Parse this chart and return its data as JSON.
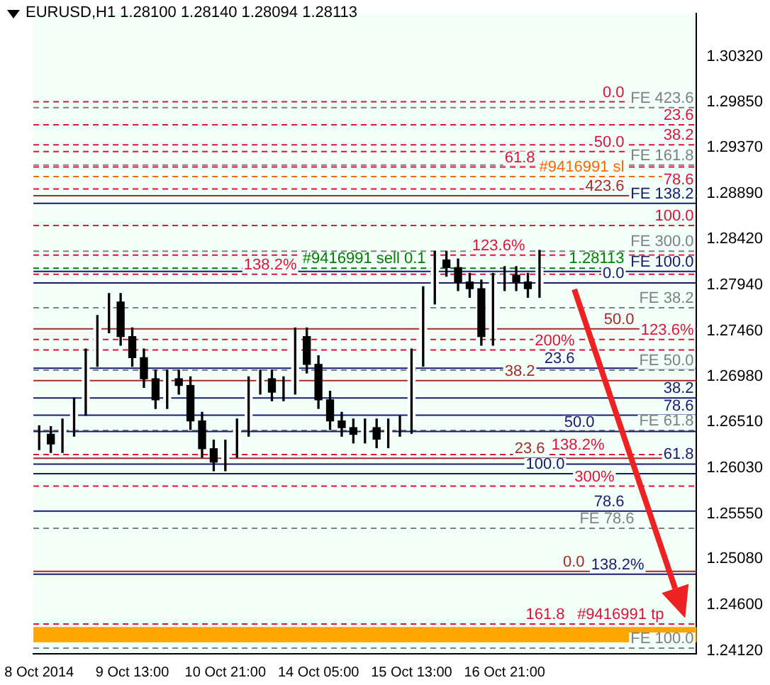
{
  "chart_data": {
    "type": "candlestick",
    "title": "EURUSD,H1 1.28100 1.28140 1.28094 1.28113",
    "categories": [
      "8 Oct 2014",
      null,
      null,
      null,
      null,
      null,
      null,
      null,
      "9 Oct 13:00",
      null,
      null,
      null,
      null,
      null,
      null,
      null,
      "10 Oct 21:00",
      null,
      null,
      null,
      null,
      null,
      null,
      null,
      "14 Oct 05:00",
      null,
      null,
      null,
      null,
      null,
      null,
      null,
      "15 Oct 13:00",
      null,
      null,
      null,
      null,
      null,
      null,
      null,
      "16 Oct 21:00",
      null,
      null,
      null,
      null,
      null,
      null,
      null,
      null,
      null,
      null,
      null,
      null,
      null,
      null,
      null,
      null
    ],
    "ohlc": [
      [
        1.263,
        1.2647,
        1.2622,
        1.2638
      ],
      [
        1.2638,
        1.2646,
        1.2619,
        1.2628
      ],
      [
        1.2628,
        1.2654,
        1.2619,
        1.2645
      ],
      [
        1.2645,
        1.2676,
        1.2636,
        1.2667
      ],
      [
        1.2667,
        1.2727,
        1.2658,
        1.2718
      ],
      [
        1.2718,
        1.2762,
        1.2709,
        1.2753
      ],
      [
        1.2753,
        1.2785,
        1.2744,
        1.2776
      ],
      [
        1.2776,
        1.2785,
        1.2731,
        1.274
      ],
      [
        1.274,
        1.2749,
        1.2709,
        1.2718
      ],
      [
        1.2718,
        1.2727,
        1.2687,
        1.2696
      ],
      [
        1.2696,
        1.2705,
        1.2665,
        1.2674
      ],
      [
        1.2674,
        1.2705,
        1.2665,
        1.2696
      ],
      [
        1.2696,
        1.2705,
        1.268,
        1.2689
      ],
      [
        1.2689,
        1.2698,
        1.2643,
        1.2652
      ],
      [
        1.2652,
        1.2661,
        1.2614,
        1.2623
      ],
      [
        1.2623,
        1.2632,
        1.26,
        1.2609
      ],
      [
        1.2609,
        1.2632,
        1.26,
        1.2623
      ],
      [
        1.2623,
        1.2654,
        1.2614,
        1.2645
      ],
      [
        1.2645,
        1.2698,
        1.2636,
        1.2689
      ],
      [
        1.2689,
        1.2705,
        1.268,
        1.2696
      ],
      [
        1.2696,
        1.2705,
        1.2673,
        1.2682
      ],
      [
        1.2682,
        1.2698,
        1.2673,
        1.2689
      ],
      [
        1.2689,
        1.2749,
        1.268,
        1.274
      ],
      [
        1.274,
        1.2749,
        1.2702,
        1.2711
      ],
      [
        1.2711,
        1.272,
        1.2665,
        1.2674
      ],
      [
        1.2674,
        1.2683,
        1.2643,
        1.2652
      ],
      [
        1.2652,
        1.2661,
        1.2636,
        1.2645
      ],
      [
        1.2645,
        1.2654,
        1.2629,
        1.2638
      ],
      [
        1.2638,
        1.2654,
        1.2629,
        1.2645
      ],
      [
        1.2645,
        1.2654,
        1.2624,
        1.2633
      ],
      [
        1.2633,
        1.2654,
        1.2624,
        1.2645
      ],
      [
        1.2645,
        1.2657,
        1.2636,
        1.2648
      ],
      [
        1.2648,
        1.2727,
        1.2639,
        1.2718
      ],
      [
        1.2718,
        1.2792,
        1.2709,
        1.2783
      ],
      [
        1.2783,
        1.2829,
        1.2774,
        1.282
      ],
      [
        1.282,
        1.2829,
        1.2803,
        1.2812
      ],
      [
        1.2812,
        1.2821,
        1.2788,
        1.2797
      ],
      [
        1.2797,
        1.2806,
        1.2781,
        1.279
      ],
      [
        1.279,
        1.2799,
        1.2731,
        1.274
      ],
      [
        1.274,
        1.2806,
        1.2731,
        1.2797
      ],
      [
        1.2797,
        1.2813,
        1.2788,
        1.2804
      ],
      [
        1.2804,
        1.2813,
        1.2788,
        1.2797
      ],
      [
        1.2797,
        1.2806,
        1.2781,
        1.279
      ],
      [
        1.279,
        1.283,
        1.2781,
        1.28113
      ],
      null,
      null,
      null,
      null,
      null,
      null,
      null,
      null,
      null,
      null,
      null,
      null,
      null
    ],
    "color": "#000000",
    "colors": [
      "#ffffff",
      "#000000",
      "#ffffff",
      "#ffffff",
      "#ffffff",
      "#ffffff",
      "#ffffff",
      "#000000",
      "#000000",
      "#000000",
      "#000000",
      "#ffffff",
      "#000000",
      "#000000",
      "#000000",
      "#000000",
      "#ffffff",
      "#ffffff",
      "#ffffff",
      "#ffffff",
      "#000000",
      "#ffffff",
      "#ffffff",
      "#000000",
      "#000000",
      "#000000",
      "#000000",
      "#000000",
      "#ffffff",
      "#000000",
      "#ffffff",
      "#ffffff",
      "#ffffff",
      "#ffffff",
      "#ffffff",
      "#000000",
      "#000000",
      "#000000",
      "#000000",
      "#ffffff",
      "#ffffff",
      "#000000",
      "#000000",
      "#ffffff",
      null,
      null,
      null,
      null,
      null,
      null,
      null,
      null,
      null,
      null,
      null,
      null,
      null
    ],
    "ylim": [
      1.2409,
      1.3077
    ],
    "yticks": [
      {
        "value": 1.3032,
        "label": "1.30320"
      },
      {
        "value": 1.2985,
        "label": "1.29850"
      },
      {
        "value": 1.2937,
        "label": "1.29370"
      },
      {
        "value": 1.2889,
        "label": "1.28890"
      },
      {
        "value": 1.2842,
        "label": "1.28420"
      },
      {
        "value": 1.2794,
        "label": "1.27940"
      },
      {
        "value": 1.2746,
        "label": "1.27460"
      },
      {
        "value": 1.2698,
        "label": "1.26980"
      },
      {
        "value": 1.2651,
        "label": "1.26510"
      },
      {
        "value": 1.2603,
        "label": "1.26030"
      },
      {
        "value": 1.2555,
        "label": "1.25550"
      },
      {
        "value": 1.2508,
        "label": "1.25080"
      },
      {
        "value": 1.246,
        "label": "1.24600"
      },
      {
        "value": 1.2412,
        "label": "1.24120"
      }
    ],
    "ref_lines": [
      {
        "axis": "y",
        "value": 1.2985,
        "color": "#dc143c",
        "line_style": "dashed"
      },
      {
        "axis": "y",
        "value": 1.2961,
        "color": "#dc143c",
        "line_style": "dashed"
      },
      {
        "axis": "y",
        "value": 1.294,
        "color": "#dc143c",
        "line_style": "dashed"
      },
      {
        "axis": "y",
        "value": 1.2933,
        "color": "#dc143c",
        "line_style": "dashed"
      },
      {
        "axis": "y",
        "value": 1.2917,
        "color": "#dc143c",
        "line_style": "dashed"
      },
      {
        "axis": "y",
        "value": 1.2907,
        "color": "#ff6600",
        "line_style": "dashed"
      },
      {
        "axis": "y",
        "value": 1.2894,
        "color": "#dc143c",
        "line_style": "dashed"
      },
      {
        "axis": "y",
        "value": 1.2856,
        "color": "#dc143c",
        "line_style": "dashed"
      },
      {
        "axis": "y",
        "value": 1.2825,
        "color": "#dc143c",
        "line_style": "dashed"
      },
      {
        "axis": "y",
        "value": 1.2805,
        "color": "#dc143c",
        "line_style": "dashed"
      },
      {
        "axis": "y",
        "value": 1.2737,
        "color": "#dc143c",
        "line_style": "dashed"
      },
      {
        "axis": "y",
        "value": 1.2726,
        "color": "#dc143c",
        "line_style": "dashed"
      },
      {
        "axis": "y",
        "value": 1.2617,
        "color": "#dc143c",
        "line_style": "dashed"
      },
      {
        "axis": "y",
        "value": 1.2584,
        "color": "#dc143c",
        "line_style": "dashed"
      },
      {
        "axis": "y",
        "value": 1.244,
        "color": "#dc143c",
        "line_style": "dashed"
      },
      {
        "axis": "y",
        "value": 1.2979,
        "label": "FE 423.6",
        "color": "#808080",
        "line_style": "dashed"
      },
      {
        "axis": "y",
        "value": 1.2919,
        "label": "FE 161.8",
        "color": "#808080",
        "line_style": "dashed"
      },
      {
        "axis": "y",
        "value": 1.2829,
        "label": "FE 300.0",
        "color": "#808080",
        "line_style": "dashed"
      },
      {
        "axis": "y",
        "value": 1.277,
        "label": "FE 38.2",
        "color": "#808080",
        "line_style": "dashed"
      },
      {
        "axis": "y",
        "value": 1.2705,
        "label": "FE 50.0",
        "color": "#808080",
        "line_style": "dashed"
      },
      {
        "axis": "y",
        "value": 1.2642,
        "label": "FE 61.8",
        "color": "#808080",
        "line_style": "dashed"
      },
      {
        "axis": "y",
        "value": 1.254,
        "label": "FE 78.6",
        "color": "#808080",
        "line_style": "dashed"
      },
      {
        "axis": "y",
        "value": 1.2415,
        "label": "FE 100.0",
        "color": "#808080",
        "line_style": "dashed"
      },
      {
        "axis": "y",
        "value": 1.2879,
        "label": "FE 138.2",
        "color": "#191970",
        "line_style": "solid"
      },
      {
        "axis": "y",
        "value": 1.2808,
        "label": "FE 100.0",
        "color": "#191970",
        "line_style": "solid"
      },
      {
        "axis": "y",
        "value": 1.2796,
        "color": "#191970",
        "line_style": "solid"
      },
      {
        "axis": "y",
        "value": 1.2707,
        "color": "#191970",
        "line_style": "solid"
      },
      {
        "axis": "y",
        "value": 1.2676,
        "color": "#191970",
        "line_style": "solid"
      },
      {
        "axis": "y",
        "value": 1.2658,
        "color": "#191970",
        "line_style": "solid"
      },
      {
        "axis": "y",
        "value": 1.2641,
        "color": "#191970",
        "line_style": "solid"
      },
      {
        "axis": "y",
        "value": 1.2607,
        "color": "#191970",
        "line_style": "solid"
      },
      {
        "axis": "y",
        "value": 1.2597,
        "color": "#191970",
        "line_style": "solid"
      },
      {
        "axis": "y",
        "value": 1.2558,
        "color": "#191970",
        "line_style": "solid"
      },
      {
        "axis": "y",
        "value": 1.2492,
        "color": "#191970",
        "line_style": "solid"
      },
      {
        "axis": "y",
        "value": 1.2887,
        "color": "#a52a2a",
        "line_style": "solid"
      },
      {
        "axis": "y",
        "value": 1.2748,
        "color": "#a52a2a",
        "line_style": "solid"
      },
      {
        "axis": "y",
        "value": 1.2694,
        "color": "#a52a2a",
        "line_style": "solid"
      },
      {
        "axis": "y",
        "value": 1.2613,
        "color": "#a52a2a",
        "line_style": "solid"
      },
      {
        "axis": "y",
        "value": 1.2495,
        "color": "#a52a2a",
        "line_style": "solid"
      },
      {
        "axis": "y",
        "value": 1.28113,
        "label": "1.28113",
        "color": "#008000",
        "line_style": "dashed"
      }
    ],
    "bands": [
      {
        "axis": "y",
        "from": 1.2421,
        "to": 1.2437,
        "color": "#ffa500"
      }
    ],
    "annotations": [
      {
        "text": "#9416991 sl",
        "y": 1.2907
      },
      {
        "text": "#9416991 sell 0.1",
        "y": 1.28113
      },
      {
        "text": "#9416991 tp",
        "y": 1.244
      },
      {
        "text": "0.0",
        "y": 1.2985
      },
      {
        "text": "23.6",
        "y": 1.2961
      },
      {
        "text": "38.2",
        "y": 1.294
      },
      {
        "text": "50.0",
        "y": 1.2933
      },
      {
        "text": "61.8",
        "y": 1.2917
      },
      {
        "text": "78.6",
        "y": 1.2894
      },
      {
        "text": "100.0",
        "y": 1.2856
      },
      {
        "text": "123.6%",
        "y": 1.2825
      },
      {
        "text": "138.2%",
        "y": 1.2805
      },
      {
        "text": "123.6%",
        "y": 1.2737
      },
      {
        "text": "200%",
        "y": 1.2726
      },
      {
        "text": "138.2%",
        "y": 1.2617
      },
      {
        "text": "300%",
        "y": 1.2584
      },
      {
        "text": "161.8",
        "y": 1.244
      },
      {
        "text": "0.0",
        "y": 1.2796
      },
      {
        "text": "23.6",
        "y": 1.2707
      },
      {
        "text": "38.2",
        "y": 1.2676
      },
      {
        "text": "78.6",
        "y": 1.2658
      },
      {
        "text": "50.0",
        "y": 1.2641
      },
      {
        "text": "61.8",
        "y": 1.2607
      },
      {
        "text": "100.0",
        "y": 1.2597
      },
      {
        "text": "78.6",
        "y": 1.2558
      },
      {
        "text": "138.2%",
        "y": 1.2492
      },
      {
        "text": "423.6",
        "y": 1.2887
      },
      {
        "text": "50.0",
        "y": 1.2748
      },
      {
        "text": "38.2",
        "y": 1.2694
      },
      {
        "text": "23.6",
        "y": 1.2613
      },
      {
        "text": "0.0",
        "y": 1.2495
      }
    ],
    "grid": false,
    "legend": false
  }
}
